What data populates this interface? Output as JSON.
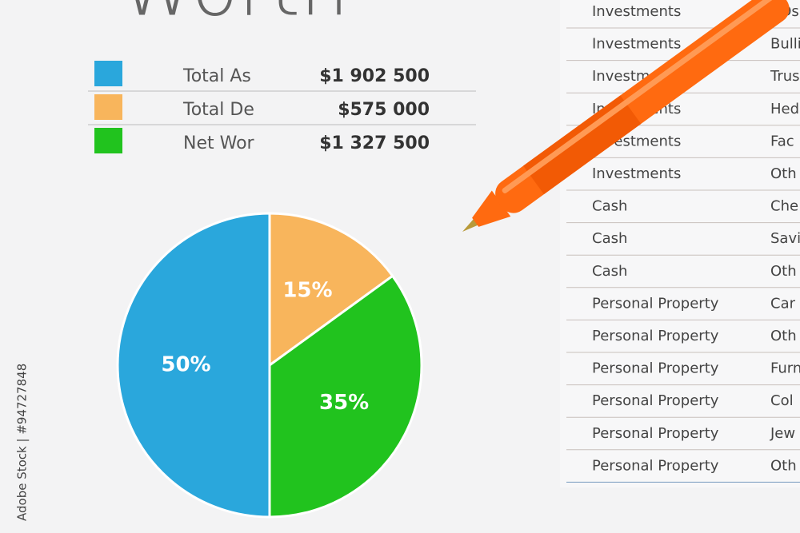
{
  "title": "Worth",
  "summary": {
    "rows": [
      {
        "label": "Total As",
        "amount": "$1 902 500",
        "color": "#2aa7dc"
      },
      {
        "label": "Total De",
        "amount": "$575 000",
        "color": "#f8b55c"
      },
      {
        "label": "Net Wor",
        "amount": "$1 327 500",
        "color": "#21c31e"
      }
    ]
  },
  "chart_data": {
    "type": "pie",
    "values": [
      15,
      35,
      50
    ],
    "value_labels": [
      "15%",
      "35%",
      "50%"
    ],
    "colors": [
      "#f8b55c",
      "#21c31e",
      "#2aa7dc"
    ]
  },
  "table": {
    "rows": [
      [
        "Investments",
        "CDs"
      ],
      [
        "Investments",
        "Bulli"
      ],
      [
        "Investments",
        "Trus"
      ],
      [
        "Investments",
        "Hed"
      ],
      [
        "Investments",
        "Fac"
      ],
      [
        "Investments",
        "Oth"
      ],
      [
        "Cash",
        "Che"
      ],
      [
        "Cash",
        "Savi"
      ],
      [
        "Cash",
        "Oth"
      ],
      [
        "Personal Property",
        "Car"
      ],
      [
        "Personal Property",
        "Oth"
      ],
      [
        "Personal Property",
        "Furn"
      ],
      [
        "Personal Property",
        "Col"
      ],
      [
        "Personal Property",
        "Jew"
      ],
      [
        "Personal Property",
        "Oth"
      ]
    ]
  },
  "watermark": "Adobe Stock | #94727848"
}
